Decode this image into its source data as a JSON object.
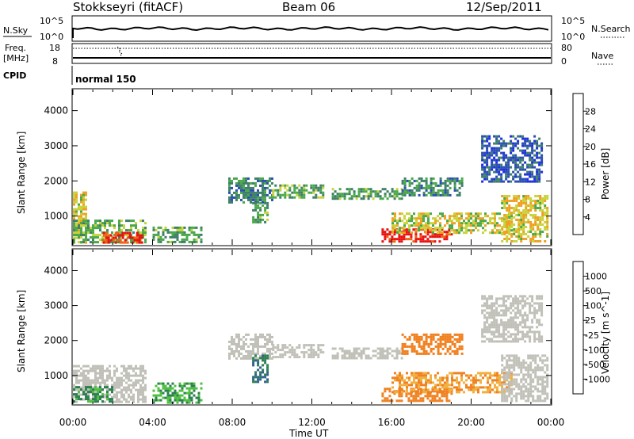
{
  "header": {
    "station": "Stokkseyri (fitACF)",
    "beam": "Beam 06",
    "date": "12/Sep/2011"
  },
  "summary_panels": {
    "nsky_label": "N.Sky",
    "nsearch_label": "N.Search",
    "count_ticks": [
      "10^5",
      "10^0"
    ],
    "freq_label": "Freq.",
    "freq_unit": "[MHz]",
    "freq_ticks": [
      "18",
      "8"
    ],
    "nave_label": "Nave",
    "nave_ticks": [
      "80",
      "0"
    ],
    "cpid_label": "CPID",
    "cpid_value": "normal 150"
  },
  "colors": {
    "power": [
      "#1f2fe0",
      "#2a4fb0",
      "#3f7f6a",
      "#4aa84a",
      "#c8d23a",
      "#f0a020",
      "#f06010",
      "#e81010"
    ],
    "velocity": [
      "#2050c0",
      "#306090",
      "#2c8050",
      "#50c040",
      "#c0c0b8",
      "#f0b040",
      "#f08020",
      "#f04010",
      "#e01010"
    ]
  },
  "chart_data": [
    {
      "type": "heatmap",
      "panel": "power",
      "xlabel": "",
      "ylabel": "Slant Range [km]",
      "y_ticks": [
        1000,
        2000,
        3000,
        4000
      ],
      "ylim": [
        180,
        4600
      ],
      "x_ticks": [
        "00:00",
        "04:00",
        "08:00",
        "12:00",
        "16:00",
        "20:00",
        "00:00"
      ],
      "xlim_hours": [
        0,
        24
      ],
      "colorbar_label": "Power [dB]",
      "colorbar_ticks": [
        "4",
        "8",
        "12",
        "16",
        "20",
        "24",
        "28"
      ],
      "colorbar_range": [
        0,
        30
      ],
      "regions": [
        {
          "x": [
            0.0,
            0.6
          ],
          "y": [
            250,
            1700
          ],
          "value": 18
        },
        {
          "x": [
            0.0,
            3.6
          ],
          "y": [
            250,
            900
          ],
          "value": 14
        },
        {
          "x": [
            1.5,
            3.5
          ],
          "y": [
            250,
            550
          ],
          "value": 27
        },
        {
          "x": [
            4.0,
            6.5
          ],
          "y": [
            250,
            700
          ],
          "value": 12
        },
        {
          "x": [
            7.8,
            10.0
          ],
          "y": [
            1400,
            2100
          ],
          "value": 10
        },
        {
          "x": [
            9.0,
            9.8
          ],
          "y": [
            800,
            1400
          ],
          "value": 12
        },
        {
          "x": [
            10.0,
            12.6
          ],
          "y": [
            1550,
            1900
          ],
          "value": 13
        },
        {
          "x": [
            13.0,
            16.5
          ],
          "y": [
            1500,
            1800
          ],
          "value": 12
        },
        {
          "x": [
            15.5,
            19.0
          ],
          "y": [
            250,
            650
          ],
          "value": 28
        },
        {
          "x": [
            16.0,
            22.0
          ],
          "y": [
            500,
            1100
          ],
          "value": 17
        },
        {
          "x": [
            16.5,
            19.5
          ],
          "y": [
            1600,
            2100
          ],
          "value": 10
        },
        {
          "x": [
            21.5,
            23.8
          ],
          "y": [
            250,
            1600
          ],
          "value": 18
        },
        {
          "x": [
            20.5,
            23.5
          ],
          "y": [
            2000,
            3300
          ],
          "value": 6
        }
      ]
    },
    {
      "type": "heatmap",
      "panel": "velocity",
      "xlabel": "Time UT",
      "ylabel": "Slant Range [km]",
      "y_ticks": [
        1000,
        2000,
        3000,
        4000
      ],
      "ylim": [
        180,
        4600
      ],
      "x_ticks": [
        "00:00",
        "04:00",
        "08:00",
        "12:00",
        "16:00",
        "20:00",
        "00:00"
      ],
      "xlim_hours": [
        0,
        24
      ],
      "colorbar_label": "Velocity [m s^-1]",
      "colorbar_ticks": [
        "1000",
        "500",
        "100",
        "25",
        "-25",
        "-100",
        "-500",
        "-1000"
      ],
      "regions": [
        {
          "x": [
            0.0,
            3.6
          ],
          "y": [
            250,
            1300
          ],
          "value": 0
        },
        {
          "x": [
            0.0,
            2.0
          ],
          "y": [
            250,
            700
          ],
          "value": 80
        },
        {
          "x": [
            4.0,
            6.5
          ],
          "y": [
            250,
            800
          ],
          "value": 60
        },
        {
          "x": [
            7.8,
            10.0
          ],
          "y": [
            1500,
            2200
          ],
          "value": 0
        },
        {
          "x": [
            9.0,
            9.8
          ],
          "y": [
            800,
            1600
          ],
          "value": 300
        },
        {
          "x": [
            10.0,
            12.6
          ],
          "y": [
            1550,
            1900
          ],
          "value": 0
        },
        {
          "x": [
            13.0,
            16.5
          ],
          "y": [
            1500,
            1800
          ],
          "value": 0
        },
        {
          "x": [
            15.5,
            19.0
          ],
          "y": [
            250,
            650
          ],
          "value": -150
        },
        {
          "x": [
            16.0,
            22.0
          ],
          "y": [
            500,
            1100
          ],
          "value": -60
        },
        {
          "x": [
            16.5,
            19.5
          ],
          "y": [
            1600,
            2200
          ],
          "value": -200
        },
        {
          "x": [
            21.5,
            23.8
          ],
          "y": [
            250,
            1600
          ],
          "value": 0
        },
        {
          "x": [
            20.5,
            23.5
          ],
          "y": [
            2000,
            3300
          ],
          "value": 0
        }
      ]
    }
  ]
}
